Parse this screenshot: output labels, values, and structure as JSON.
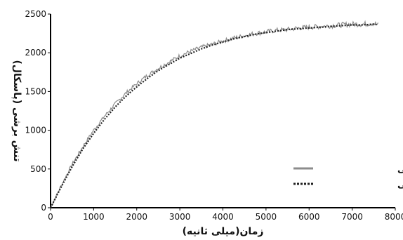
{
  "chart_data": {
    "type": "line",
    "xlabel": "زمان(میلی ثانیه)",
    "ylabel": "تنش برشی (پاسکال)",
    "xlim": [
      0,
      8000
    ],
    "ylim": [
      0,
      2500
    ],
    "x_ticks": [
      0,
      1000,
      2000,
      3000,
      4000,
      5000,
      6000,
      7000,
      8000
    ],
    "y_ticks": [
      0,
      500,
      1000,
      1500,
      2000,
      2500
    ],
    "grid": false,
    "legend_position": "right",
    "series": [
      {
        "name": "تجربی",
        "style": "solid",
        "color": "#8c8c8c",
        "noisy": true,
        "x": [
          0,
          250,
          500,
          750,
          1000,
          1250,
          1500,
          1750,
          2000,
          2250,
          2500,
          2750,
          3000,
          3250,
          3500,
          3750,
          4000,
          4250,
          4500,
          4750,
          5000,
          5250,
          5500,
          5750,
          6000,
          6250,
          6500,
          6750,
          7000,
          7250,
          7500,
          7600
        ],
        "y": [
          0,
          290,
          560,
          790,
          1000,
          1180,
          1340,
          1480,
          1600,
          1710,
          1800,
          1880,
          1960,
          2020,
          2070,
          2110,
          2150,
          2190,
          2220,
          2250,
          2270,
          2290,
          2300,
          2320,
          2330,
          2340,
          2350,
          2360,
          2370,
          2370,
          2380,
          2360
        ]
      },
      {
        "name": "تحلیلی - تجربی",
        "style": "dotted",
        "color": "#222222",
        "noisy": false,
        "x": [
          0,
          250,
          500,
          750,
          1000,
          1250,
          1500,
          1750,
          2000,
          2250,
          2500,
          2750,
          3000,
          3250,
          3500,
          3750,
          4000,
          4250,
          4500,
          4750,
          5000,
          5250,
          5500,
          5750,
          6000,
          6250,
          6500,
          6750,
          7000,
          7250,
          7500,
          7600
        ],
        "y": [
          0,
          270,
          530,
          760,
          960,
          1140,
          1300,
          1440,
          1560,
          1670,
          1770,
          1850,
          1930,
          1990,
          2050,
          2100,
          2140,
          2180,
          2210,
          2240,
          2260,
          2280,
          2300,
          2310,
          2320,
          2330,
          2340,
          2350,
          2360,
          2360,
          2370,
          2360
        ]
      }
    ]
  }
}
